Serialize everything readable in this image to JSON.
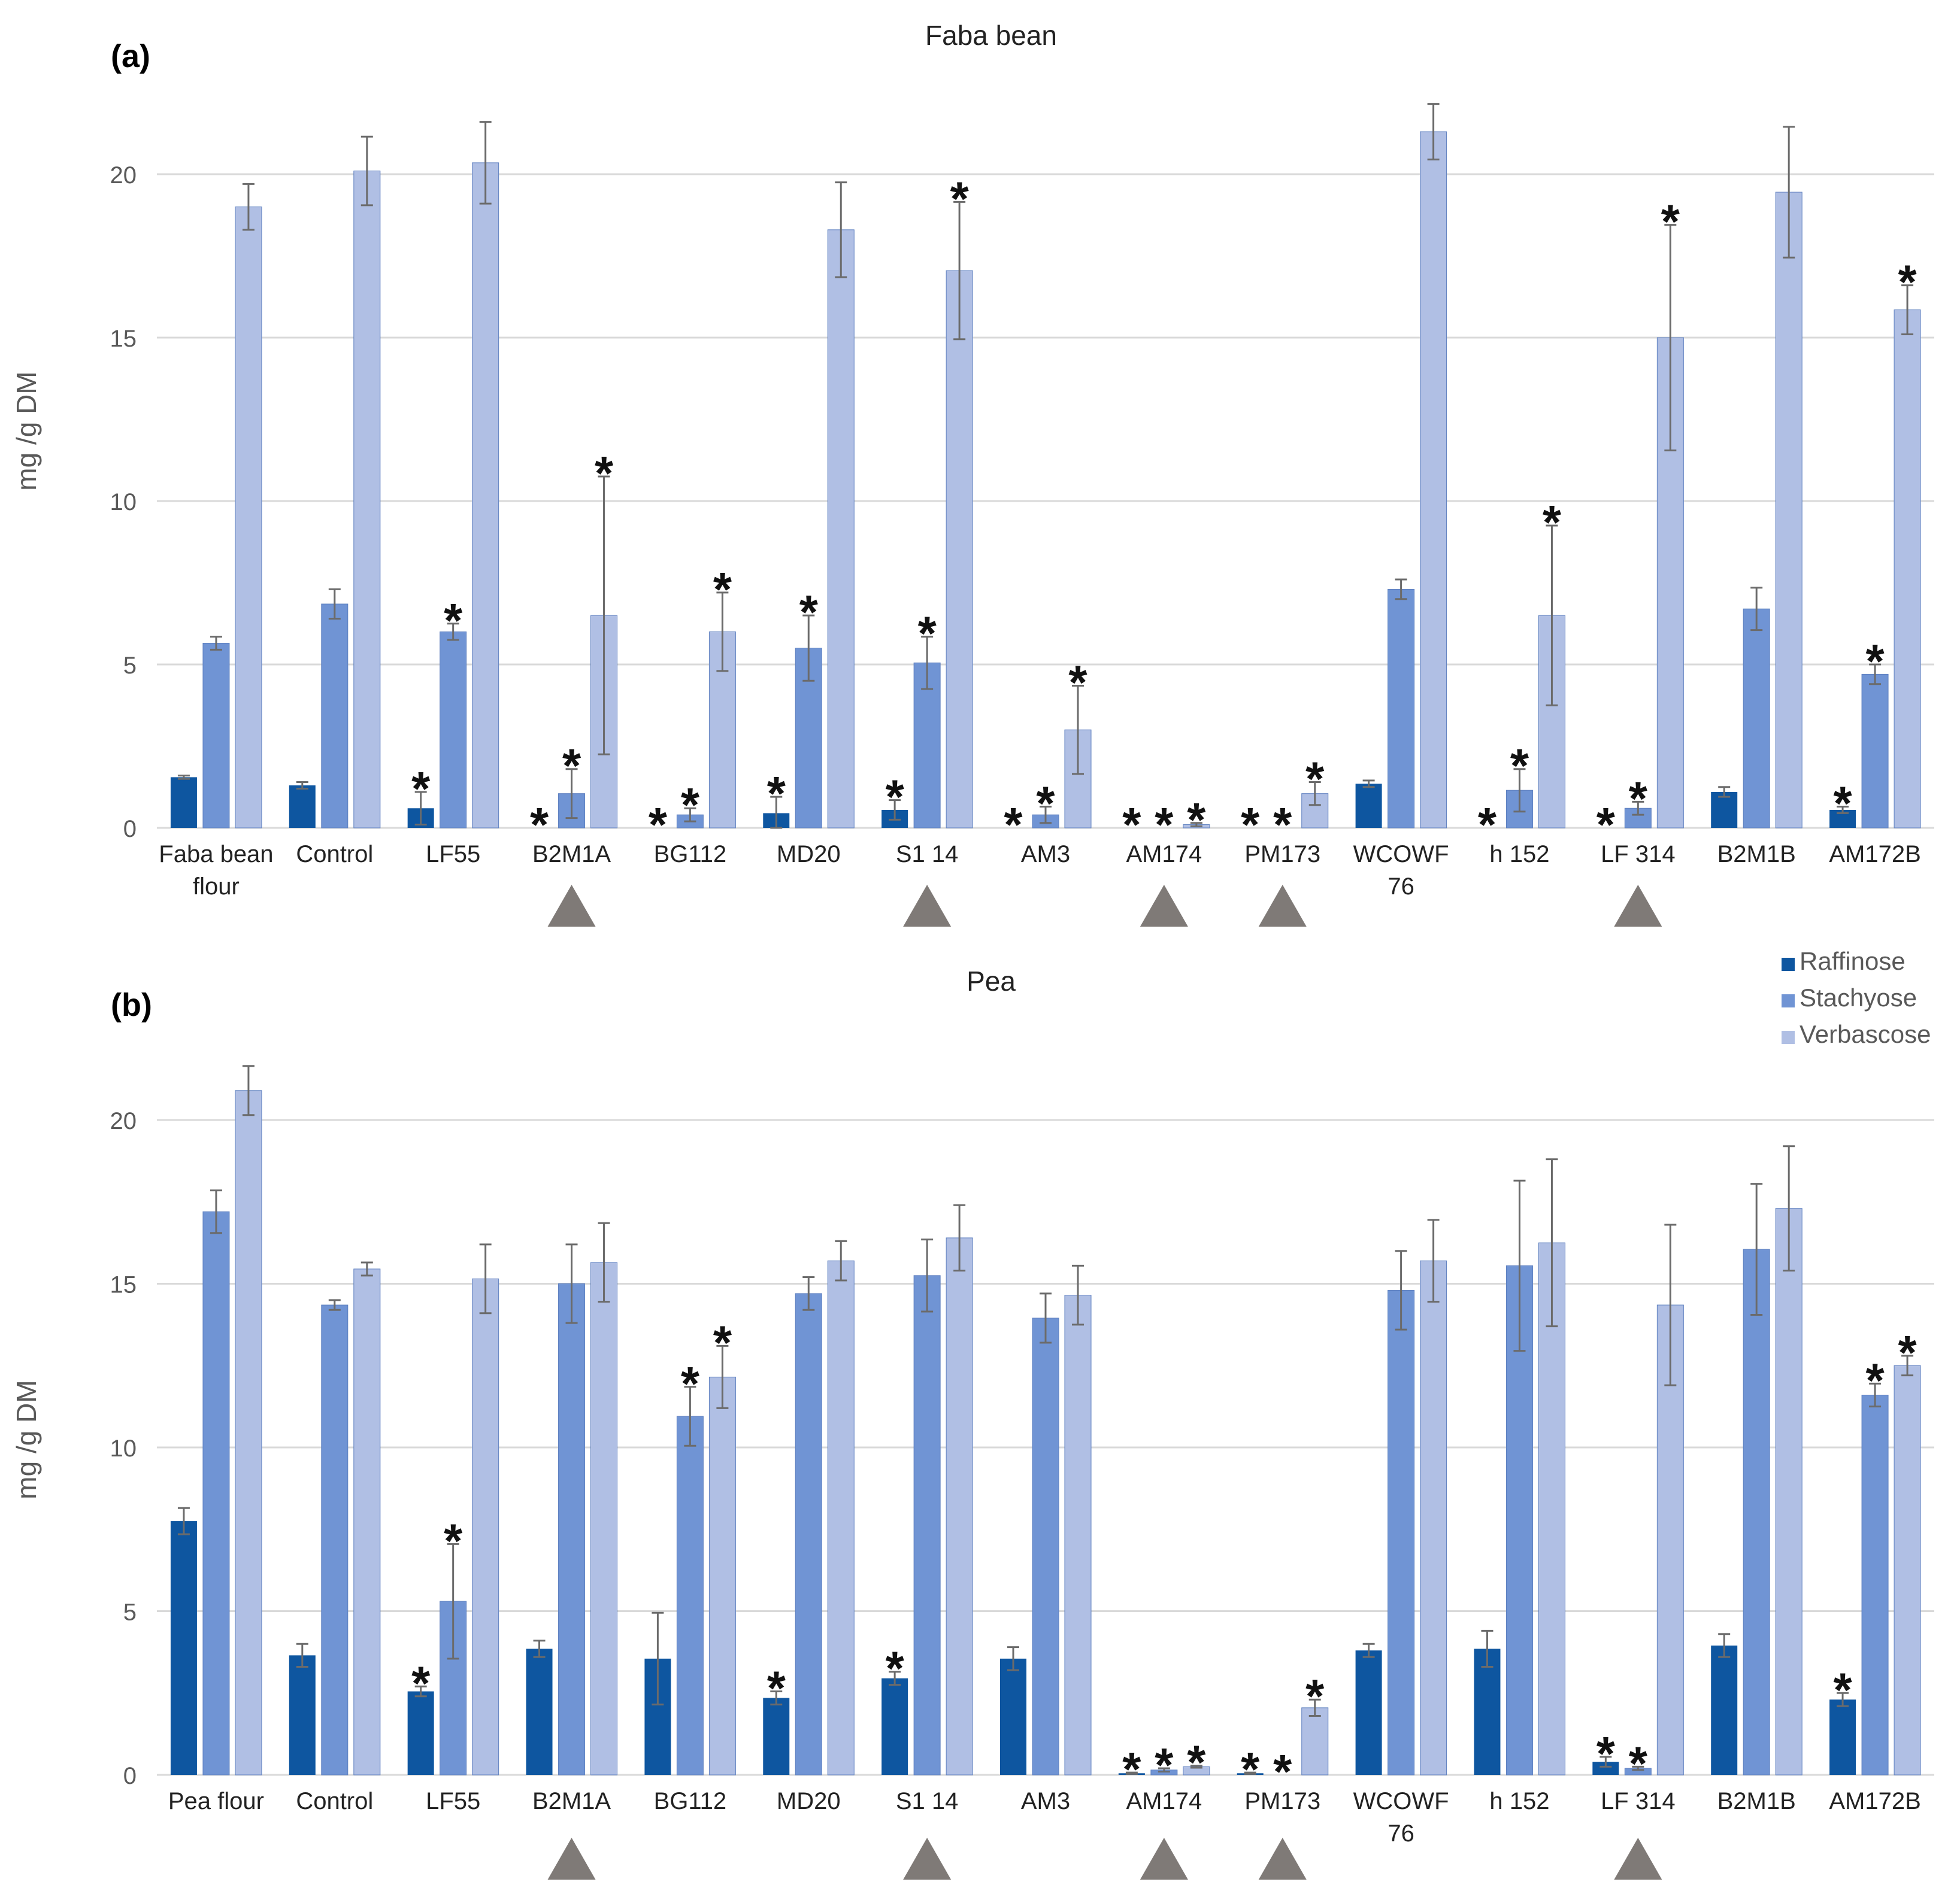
{
  "colors": {
    "raffinose": "#0e56a0",
    "stachyose": "#7094d4",
    "verbascose": "#b0bfe4",
    "grid": "#d9d9d9",
    "axis_text": "#595959",
    "errorbar": "#6b6b6b",
    "marker": "#7f7a77",
    "star": "#111111"
  },
  "legend": {
    "items": [
      "Raffinose",
      "Stachyose",
      "Verbascose"
    ],
    "placement": "right, between panels"
  },
  "chart_data": [
    {
      "type": "bar",
      "panel_label": "(a)",
      "title": "Faba bean",
      "ylabel": "mg /g DM",
      "ylim": [
        0,
        22
      ],
      "yticks": [
        "0",
        "5",
        "10",
        "15",
        "20"
      ],
      "grid": true,
      "categories": [
        "Faba bean\nflour",
        "Control",
        "LF55",
        "B2M1A",
        "BG112",
        "MD20",
        "S1 14",
        "AM3",
        "AM174",
        "PM173",
        "WCOWF\n76",
        "h 152",
        "LF 314",
        "B2M1B",
        "AM172B"
      ],
      "triangle_marker_categories": [
        "B2M1A",
        "S1 14",
        "AM174",
        "PM173",
        "LF 314"
      ],
      "series": [
        {
          "name": "Raffinose",
          "values": [
            1.55,
            1.3,
            0.6,
            0,
            0,
            0.45,
            0.55,
            0,
            0,
            0,
            1.35,
            0,
            0,
            1.1,
            0.55
          ],
          "errors": [
            0.05,
            0.1,
            0.5,
            0,
            0,
            0.5,
            0.3,
            0,
            0,
            0,
            0.1,
            0,
            0,
            0.15,
            0.1
          ],
          "significant": [
            false,
            false,
            true,
            true,
            true,
            true,
            true,
            true,
            true,
            true,
            false,
            true,
            true,
            false,
            true
          ]
        },
        {
          "name": "Stachyose",
          "values": [
            5.65,
            6.85,
            6.0,
            1.05,
            0.4,
            5.5,
            5.05,
            0.4,
            0,
            0,
            7.3,
            1.15,
            0.6,
            6.7,
            4.7
          ],
          "errors": [
            0.2,
            0.45,
            0.25,
            0.75,
            0.2,
            1.0,
            0.8,
            0.25,
            0,
            0,
            0.3,
            0.65,
            0.2,
            0.65,
            0.3
          ],
          "significant": [
            false,
            false,
            true,
            true,
            true,
            true,
            true,
            true,
            true,
            true,
            false,
            true,
            true,
            false,
            true
          ]
        },
        {
          "name": "Verbascose",
          "values": [
            19.0,
            20.1,
            20.35,
            6.5,
            6.0,
            18.3,
            17.05,
            3.0,
            0.1,
            1.05,
            21.3,
            6.5,
            15.0,
            19.45,
            15.85
          ],
          "errors": [
            0.7,
            1.05,
            1.25,
            4.25,
            1.2,
            1.45,
            2.1,
            1.35,
            0.05,
            0.35,
            0.85,
            2.75,
            3.45,
            2.0,
            0.75
          ],
          "significant": [
            false,
            false,
            false,
            true,
            true,
            false,
            true,
            true,
            true,
            true,
            false,
            true,
            true,
            false,
            true
          ]
        }
      ]
    },
    {
      "type": "bar",
      "panel_label": "(b)",
      "title": "Pea",
      "ylabel": "mg /g DM",
      "ylim": [
        0,
        22
      ],
      "yticks": [
        "0",
        "5",
        "10",
        "15",
        "20"
      ],
      "grid": true,
      "categories": [
        "Pea flour",
        "Control",
        "LF55",
        "B2M1A",
        "BG112",
        "MD20",
        "S1 14",
        "AM3",
        "AM174",
        "PM173",
        "WCOWF\n76",
        "h 152",
        "LF 314",
        "B2M1B",
        "AM172B"
      ],
      "triangle_marker_categories": [
        "B2M1A",
        "S1 14",
        "AM174",
        "PM173",
        "LF 314"
      ],
      "series": [
        {
          "name": "Raffinose",
          "values": [
            7.75,
            3.65,
            2.55,
            3.85,
            3.55,
            2.35,
            2.95,
            3.55,
            0.05,
            0.05,
            3.8,
            3.85,
            0.4,
            3.95,
            2.3
          ],
          "errors": [
            0.4,
            0.35,
            0.15,
            0.25,
            1.4,
            0.2,
            0.2,
            0.35,
            0.02,
            0.02,
            0.2,
            0.55,
            0.15,
            0.35,
            0.2
          ],
          "significant": [
            false,
            false,
            true,
            false,
            false,
            true,
            true,
            false,
            true,
            true,
            false,
            false,
            true,
            false,
            true
          ]
        },
        {
          "name": "Stachyose",
          "values": [
            17.2,
            14.35,
            5.3,
            15.0,
            10.95,
            14.7,
            15.25,
            13.95,
            0.15,
            0,
            14.8,
            15.55,
            0.2,
            16.05,
            11.6
          ],
          "errors": [
            0.65,
            0.15,
            1.75,
            1.2,
            0.9,
            0.5,
            1.1,
            0.75,
            0.05,
            0,
            1.2,
            2.6,
            0.05,
            2.0,
            0.35
          ],
          "significant": [
            false,
            false,
            true,
            false,
            true,
            false,
            false,
            false,
            true,
            true,
            false,
            false,
            true,
            false,
            true
          ]
        },
        {
          "name": "Verbascose",
          "values": [
            20.9,
            15.45,
            15.15,
            15.65,
            12.15,
            15.7,
            16.4,
            14.65,
            0.25,
            2.05,
            15.7,
            16.25,
            14.35,
            17.3,
            12.5
          ],
          "errors": [
            0.75,
            0.2,
            1.05,
            1.2,
            0.95,
            0.6,
            1.0,
            0.9,
            0.03,
            0.25,
            1.25,
            2.55,
            2.45,
            1.9,
            0.3
          ],
          "significant": [
            false,
            false,
            false,
            false,
            true,
            false,
            false,
            false,
            true,
            true,
            false,
            false,
            false,
            false,
            true
          ]
        }
      ]
    }
  ]
}
